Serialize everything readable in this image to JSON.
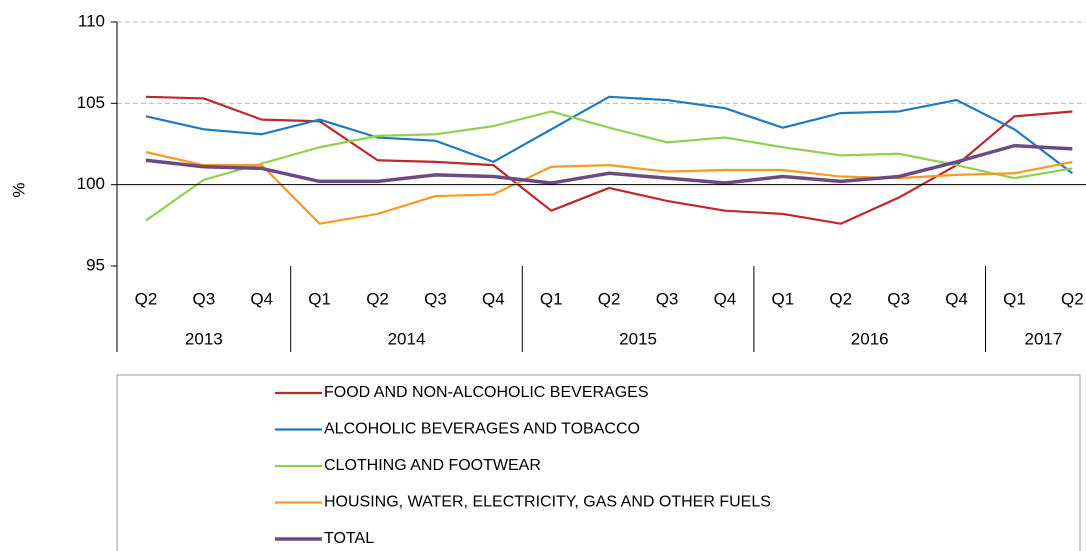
{
  "chart_data": {
    "type": "line",
    "ylabel": "%",
    "groups": [
      {
        "name": "2013",
        "categories": [
          "Q2",
          "Q3",
          "Q4"
        ]
      },
      {
        "name": "2014",
        "categories": [
          "Q1",
          "Q2",
          "Q3",
          "Q4"
        ]
      },
      {
        "name": "2015",
        "categories": [
          "Q1",
          "Q2",
          "Q3",
          "Q4"
        ]
      },
      {
        "name": "2016",
        "categories": [
          "Q1",
          "Q2",
          "Q3",
          "Q4"
        ]
      },
      {
        "name": "2017",
        "categories": [
          "Q1",
          "Q2"
        ]
      }
    ],
    "series": [
      {
        "name": "FOOD AND NON-ALCOHOLIC BEVERAGES",
        "color": "#c0272d",
        "values": [
          105.4,
          105.3,
          104.0,
          103.9,
          101.5,
          101.4,
          101.2,
          98.4,
          99.8,
          99.0,
          98.4,
          98.2,
          97.6,
          99.2,
          101.2,
          104.2,
          104.5
        ]
      },
      {
        "name": "ALCOHOLIC BEVERAGES AND TOBACCO",
        "color": "#1f7bbf",
        "values": [
          104.2,
          103.4,
          103.1,
          104.0,
          102.9,
          102.7,
          101.4,
          103.4,
          105.4,
          105.2,
          104.7,
          103.5,
          104.4,
          104.5,
          105.2,
          103.4,
          100.7
        ]
      },
      {
        "name": "CLOTHING AND FOOTWEAR",
        "color": "#92d050",
        "values": [
          97.8,
          100.3,
          101.3,
          102.3,
          103.0,
          103.1,
          103.6,
          104.5,
          103.5,
          102.6,
          102.9,
          102.3,
          101.8,
          101.9,
          101.2,
          100.4,
          101.0
        ]
      },
      {
        "name": "HOUSING, WATER, ELECTRICITY, GAS AND OTHER FUELS",
        "color": "#f79a1e",
        "values": [
          102.0,
          101.2,
          101.2,
          97.6,
          98.2,
          99.3,
          99.4,
          101.1,
          101.2,
          100.8,
          100.9,
          100.9,
          100.5,
          100.4,
          100.6,
          100.7,
          101.4
        ]
      },
      {
        "name": "TOTAL",
        "color": "#6a4c82",
        "values": [
          101.5,
          101.1,
          101.0,
          100.2,
          100.2,
          100.6,
          100.5,
          100.1,
          100.7,
          100.4,
          100.1,
          100.5,
          100.2,
          100.5,
          101.4,
          102.4,
          102.2
        ]
      }
    ],
    "ylim": [
      95,
      110
    ],
    "yticks": [
      95,
      100,
      105,
      110
    ],
    "grid": true,
    "xaxis_at": 100
  }
}
